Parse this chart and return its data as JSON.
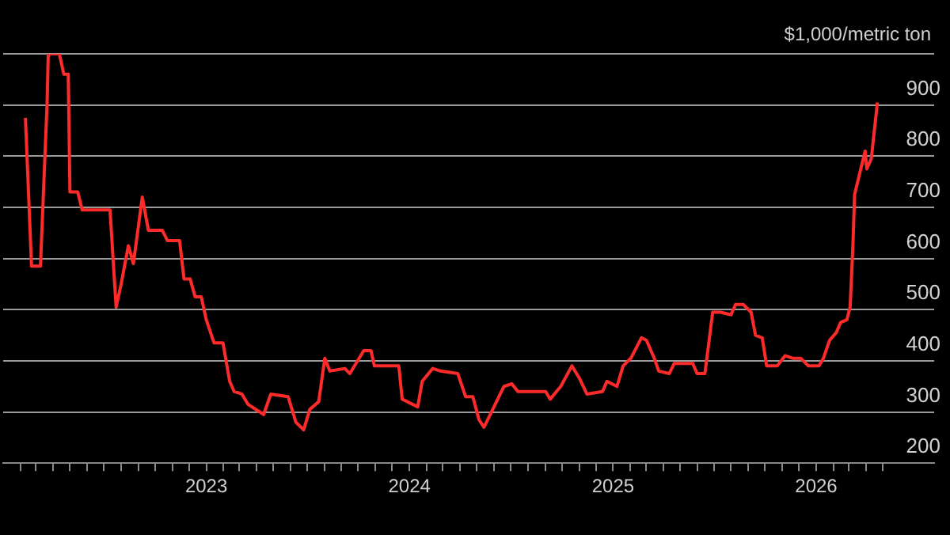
{
  "chart_data": {
    "type": "line",
    "ylabel": "$1,000/metric ton",
    "x": [
      "2022-02-10",
      "2022-02-21",
      "2022-03-09",
      "2022-03-21",
      "2022-03-23",
      "2022-04-12",
      "2022-04-20",
      "2022-04-28",
      "2022-05-01",
      "2022-05-15",
      "2022-05-23",
      "2022-07-12",
      "2022-07-23",
      "2022-08-01",
      "2022-08-14",
      "2022-08-23",
      "2022-09-08",
      "2022-09-19",
      "2022-10-14",
      "2022-10-23",
      "2022-11-14",
      "2022-11-22",
      "2022-12-03",
      "2022-12-12",
      "2022-12-23",
      "2023-01-01",
      "2023-01-15",
      "2023-01-31",
      "2023-02-12",
      "2023-02-20",
      "2023-03-06",
      "2023-03-17",
      "2023-04-14",
      "2023-04-27",
      "2023-05-28",
      "2023-06-11",
      "2023-06-25",
      "2023-07-06",
      "2023-07-22",
      "2023-08-02",
      "2023-08-11",
      "2023-09-07",
      "2023-09-16",
      "2023-10-11",
      "2023-10-24",
      "2023-10-30",
      "2023-12-13",
      "2023-12-19",
      "2024-01-16",
      "2024-01-24",
      "2024-02-12",
      "2024-02-26",
      "2024-03-28",
      "2024-04-11",
      "2024-04-24",
      "2024-05-05",
      "2024-05-14",
      "2024-06-19",
      "2024-07-03",
      "2024-07-14",
      "2024-09-02",
      "2024-09-10",
      "2024-09-29",
      "2024-10-19",
      "2024-11-02",
      "2024-11-15",
      "2024-12-13",
      "2024-12-21",
      "2025-01-08",
      "2025-01-19",
      "2025-02-02",
      "2025-02-21",
      "2025-03-02",
      "2025-03-16",
      "2025-03-24",
      "2025-04-12",
      "2025-04-21",
      "2025-05-24",
      "2025-06-01",
      "2025-06-15",
      "2025-06-29",
      "2025-07-13",
      "2025-08-01",
      "2025-08-09",
      "2025-08-23",
      "2025-09-06",
      "2025-09-14",
      "2025-09-26",
      "2025-10-04",
      "2025-10-23",
      "2025-11-06",
      "2025-11-20",
      "2025-12-04",
      "2025-12-18",
      "2026-01-06",
      "2026-01-14",
      "2026-01-25",
      "2026-02-06",
      "2026-02-14",
      "2026-02-25",
      "2026-03-03",
      "2026-03-08",
      "2026-03-11",
      "2026-03-30",
      "2026-04-02",
      "2026-04-10",
      "2026-04-21"
    ],
    "series": [
      {
        "color": "#ff2a2a",
        "values": [
          875,
          585,
          585,
          905,
          1000,
          1000,
          960,
          960,
          730,
          730,
          695,
          695,
          505,
          550,
          625,
          590,
          720,
          655,
          655,
          635,
          635,
          560,
          560,
          525,
          525,
          480,
          435,
          435,
          360,
          340,
          335,
          315,
          295,
          335,
          330,
          280,
          265,
          305,
          320,
          405,
          380,
          385,
          375,
          420,
          420,
          390,
          390,
          325,
          310,
          360,
          385,
          380,
          375,
          330,
          330,
          285,
          270,
          350,
          355,
          340,
          340,
          325,
          350,
          390,
          365,
          335,
          340,
          360,
          350,
          390,
          405,
          445,
          440,
          405,
          380,
          375,
          395,
          395,
          375,
          375,
          495,
          495,
          490,
          510,
          510,
          495,
          450,
          445,
          390,
          390,
          410,
          405,
          405,
          390,
          390,
          405,
          440,
          455,
          475,
          480,
          505,
          625,
          725,
          810,
          775,
          795,
          905
        ]
      }
    ],
    "xlim": [
      "2022-01",
      "2026-08"
    ],
    "xticks": [
      {
        "value": "2022-02",
        "label": null
      },
      {
        "value": "2022-03",
        "label": null
      },
      {
        "value": "2022-04",
        "label": null
      },
      {
        "value": "2022-05",
        "label": null
      },
      {
        "value": "2022-06",
        "label": null
      },
      {
        "value": "2022-07",
        "label": null
      },
      {
        "value": "2022-08",
        "label": null
      },
      {
        "value": "2022-09",
        "label": null
      },
      {
        "value": "2022-10",
        "label": null
      },
      {
        "value": "2022-11",
        "label": null
      },
      {
        "value": "2022-12",
        "label": null
      },
      {
        "value": "2023-01",
        "label": "2023"
      },
      {
        "value": "2023-02",
        "label": null
      },
      {
        "value": "2023-03",
        "label": null
      },
      {
        "value": "2023-04",
        "label": null
      },
      {
        "value": "2023-05",
        "label": null
      },
      {
        "value": "2023-06",
        "label": null
      },
      {
        "value": "2023-07",
        "label": null
      },
      {
        "value": "2023-08",
        "label": null
      },
      {
        "value": "2023-09",
        "label": null
      },
      {
        "value": "2023-10",
        "label": null
      },
      {
        "value": "2023-11",
        "label": null
      },
      {
        "value": "2023-12",
        "label": null
      },
      {
        "value": "2024-01",
        "label": "2024"
      },
      {
        "value": "2024-02",
        "label": null
      },
      {
        "value": "2024-03",
        "label": null
      },
      {
        "value": "2024-04",
        "label": null
      },
      {
        "value": "2024-05",
        "label": null
      },
      {
        "value": "2024-06",
        "label": null
      },
      {
        "value": "2024-07",
        "label": null
      },
      {
        "value": "2024-08",
        "label": null
      },
      {
        "value": "2024-09",
        "label": null
      },
      {
        "value": "2024-10",
        "label": null
      },
      {
        "value": "2024-11",
        "label": null
      },
      {
        "value": "2024-12",
        "label": null
      },
      {
        "value": "2025-01",
        "label": "2025"
      },
      {
        "value": "2025-02",
        "label": null
      },
      {
        "value": "2025-03",
        "label": null
      },
      {
        "value": "2025-04",
        "label": null
      },
      {
        "value": "2025-05",
        "label": null
      },
      {
        "value": "2025-06",
        "label": null
      },
      {
        "value": "2025-07",
        "label": null
      },
      {
        "value": "2025-08",
        "label": null
      },
      {
        "value": "2025-09",
        "label": null
      },
      {
        "value": "2025-10",
        "label": null
      },
      {
        "value": "2025-11",
        "label": null
      },
      {
        "value": "2025-12",
        "label": null
      },
      {
        "value": "2026-01",
        "label": "2026"
      },
      {
        "value": "2026-02",
        "label": null
      },
      {
        "value": "2026-03",
        "label": null
      },
      {
        "value": "2026-04",
        "label": null
      },
      {
        "value": "2026-05",
        "label": null
      }
    ],
    "ylim": [
      200,
      1000
    ],
    "yticks": [
      200,
      300,
      400,
      500,
      600,
      700,
      800,
      900,
      {
        "value": 1000,
        "label": null
      }
    ],
    "grid": "y"
  }
}
